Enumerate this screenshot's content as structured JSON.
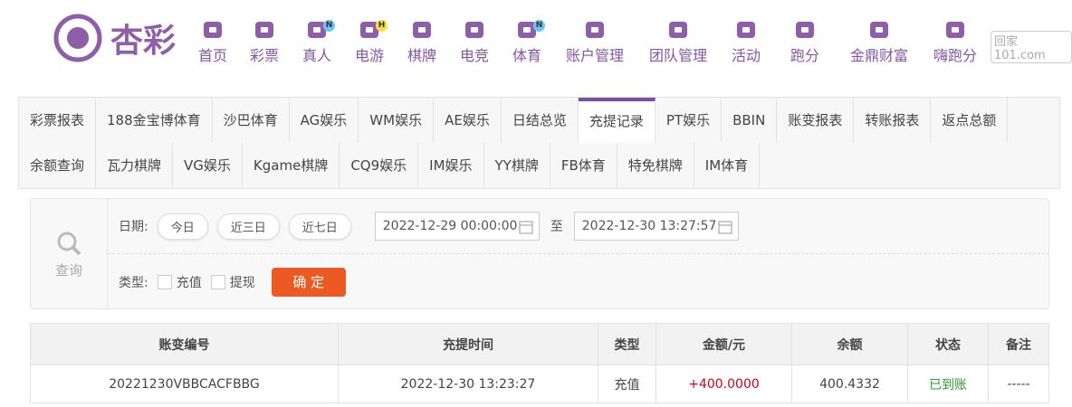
{
  "header": {
    "logo": "杏彩",
    "watermark": "回家101.com",
    "nav": [
      {
        "label": "首页"
      },
      {
        "label": "彩票"
      },
      {
        "label": "真人",
        "badge": "N"
      },
      {
        "label": "电游",
        "badge": "H"
      },
      {
        "label": "棋牌"
      },
      {
        "label": "电竞"
      },
      {
        "label": "体育",
        "badge": "N"
      },
      {
        "label": "账户管理"
      },
      {
        "label": "团队管理"
      },
      {
        "label": "活动"
      },
      {
        "label": "跑分"
      },
      {
        "label": "金鼎财富"
      },
      {
        "label": "嗨跑分"
      }
    ]
  },
  "tabs": {
    "rows": [
      [
        "彩票报表",
        "188金宝博体育",
        "沙巴体育",
        "AG娱乐",
        "WM娱乐",
        "AE娱乐",
        "日结总览",
        "充提记录",
        "PT娱乐",
        "BBIN",
        "账变报表",
        "转账报表",
        "返点总额"
      ],
      [
        "余额查询",
        "瓦力棋牌",
        "VG娱乐",
        "Kgame棋牌",
        "CQ9娱乐",
        "IM娱乐",
        "YY棋牌",
        "FB体育",
        "特免棋牌",
        "IM体育"
      ]
    ],
    "active": "充提记录"
  },
  "search": {
    "label": "查询",
    "date_label": "日期:",
    "quick": [
      "今日",
      "近三日",
      "近七日"
    ],
    "start": "2022-12-29 00:00:00",
    "to": "至",
    "end": "2022-12-30 13:27:57",
    "type_label": "类型:",
    "types": [
      "充值",
      "提现"
    ],
    "confirm": "确 定"
  },
  "table": {
    "headers": [
      "账变编号",
      "充提时间",
      "类型",
      "金额/元",
      "余额",
      "状态",
      "备注"
    ],
    "rows": [
      [
        "20221230VBBCACFBBG",
        "2022-12-30 13:23:27",
        "充值",
        "+400.0000",
        "400.4332",
        "已到账",
        "-----"
      ]
    ]
  }
}
